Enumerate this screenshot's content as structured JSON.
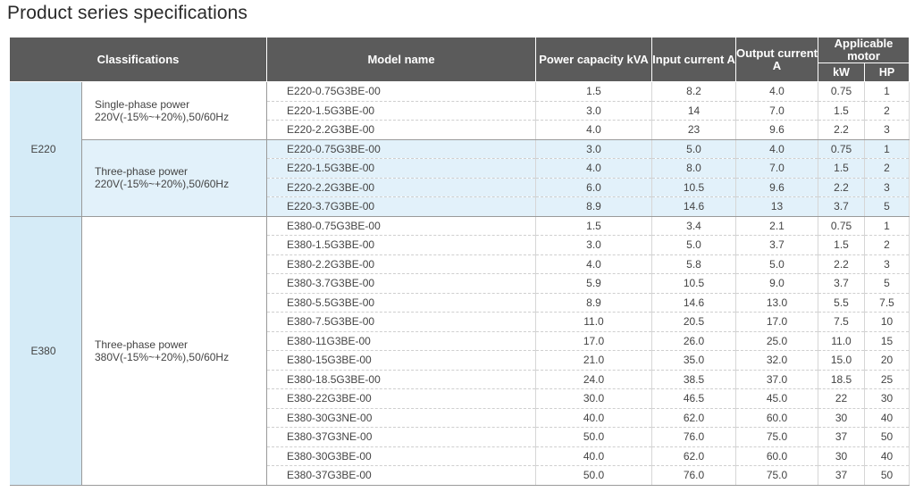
{
  "title": "Product series specifications",
  "headers": {
    "classifications": "Classifications",
    "model_name": "Model name",
    "power_capacity": "Power capacity kVA",
    "input_current": "Input current A",
    "output_current": "Output current A",
    "applicable_motor": "Applicable motor",
    "kw": "kW",
    "hp": "HP"
  },
  "series": [
    {
      "name": "E220",
      "groups": [
        {
          "classification_line1": "Single-phase power",
          "classification_line2": "220V(-15%~+20%),50/60Hz",
          "shaded": false,
          "rows": [
            {
              "model": "E220-0.75G3BE-00",
              "kva": "1.5",
              "input": "8.2",
              "output": "4.0",
              "kw": "0.75",
              "hp": "1"
            },
            {
              "model": "E220-1.5G3BE-00",
              "kva": "3.0",
              "input": "14",
              "output": "7.0",
              "kw": "1.5",
              "hp": "2"
            },
            {
              "model": "E220-2.2G3BE-00",
              "kva": "4.0",
              "input": "23",
              "output": "9.6",
              "kw": "2.2",
              "hp": "3"
            }
          ]
        },
        {
          "classification_line1": "Three-phase power",
          "classification_line2": "220V(-15%~+20%),50/60Hz",
          "shaded": true,
          "rows": [
            {
              "model": "E220-0.75G3BE-00",
              "kva": "3.0",
              "input": "5.0",
              "output": "4.0",
              "kw": "0.75",
              "hp": "1"
            },
            {
              "model": "E220-1.5G3BE-00",
              "kva": "4.0",
              "input": "8.0",
              "output": "7.0",
              "kw": "1.5",
              "hp": "2"
            },
            {
              "model": "E220-2.2G3BE-00",
              "kva": "6.0",
              "input": "10.5",
              "output": "9.6",
              "kw": "2.2",
              "hp": "3"
            },
            {
              "model": "E220-3.7G3BE-00",
              "kva": "8.9",
              "input": "14.6",
              "output": "13",
              "kw": "3.7",
              "hp": "5"
            }
          ]
        }
      ]
    },
    {
      "name": "E380",
      "groups": [
        {
          "classification_line1": "Three-phase power",
          "classification_line2": "380V(-15%~+20%),50/60Hz",
          "shaded": false,
          "rows": [
            {
              "model": "E380-0.75G3BE-00",
              "kva": "1.5",
              "input": "3.4",
              "output": "2.1",
              "kw": "0.75",
              "hp": "1"
            },
            {
              "model": "E380-1.5G3BE-00",
              "kva": "3.0",
              "input": "5.0",
              "output": "3.7",
              "kw": "1.5",
              "hp": "2"
            },
            {
              "model": "E380-2.2G3BE-00",
              "kva": "4.0",
              "input": "5.8",
              "output": "5.0",
              "kw": "2.2",
              "hp": "3"
            },
            {
              "model": "E380-3.7G3BE-00",
              "kva": "5.9",
              "input": "10.5",
              "output": "9.0",
              "kw": "3.7",
              "hp": "5"
            },
            {
              "model": "E380-5.5G3BE-00",
              "kva": "8.9",
              "input": "14.6",
              "output": "13.0",
              "kw": "5.5",
              "hp": "7.5"
            },
            {
              "model": "E380-7.5G3BE-00",
              "kva": "11.0",
              "input": "20.5",
              "output": "17.0",
              "kw": "7.5",
              "hp": "10"
            },
            {
              "model": "E380-11G3BE-00",
              "kva": "17.0",
              "input": "26.0",
              "output": "25.0",
              "kw": "11.0",
              "hp": "15"
            },
            {
              "model": "E380-15G3BE-00",
              "kva": "21.0",
              "input": "35.0",
              "output": "32.0",
              "kw": "15.0",
              "hp": "20"
            },
            {
              "model": "E380-18.5G3BE-00",
              "kva": "24.0",
              "input": "38.5",
              "output": "37.0",
              "kw": "18.5",
              "hp": "25"
            },
            {
              "model": "E380-22G3BE-00",
              "kva": "30.0",
              "input": "46.5",
              "output": "45.0",
              "kw": "22",
              "hp": "30"
            },
            {
              "model": "E380-30G3NE-00",
              "kva": "40.0",
              "input": "62.0",
              "output": "60.0",
              "kw": "30",
              "hp": "40"
            },
            {
              "model": "E380-37G3NE-00",
              "kva": "50.0",
              "input": "76.0",
              "output": "75.0",
              "kw": "37",
              "hp": "50"
            },
            {
              "model": "E380-30G3BE-00",
              "kva": "40.0",
              "input": "62.0",
              "output": "60.0",
              "kw": "30",
              "hp": "40"
            },
            {
              "model": "E380-37G3BE-00",
              "kva": "50.0",
              "input": "76.0",
              "output": "75.0",
              "kw": "37",
              "hp": "50"
            }
          ]
        }
      ]
    }
  ]
}
